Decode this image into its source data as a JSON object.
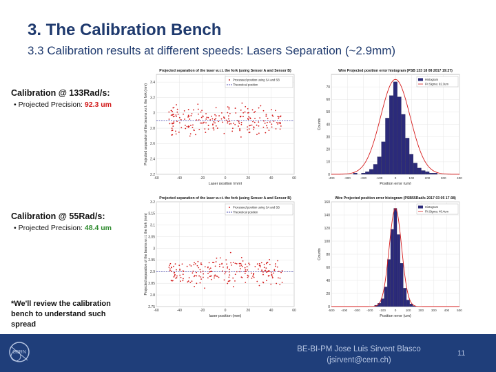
{
  "header": {
    "title": "3. The Calibration Bench",
    "subtitle": "3.3 Calibration results at different speeds: Lasers Separation (~2.9mm)"
  },
  "sections": [
    {
      "heading": "Calibration @ 133Rad/s:",
      "bullet_prefix": "• Projected Precision: ",
      "precision": "92.3 um",
      "precision_color": "#d11818"
    },
    {
      "heading": "Calibration @ 55Rad/s:",
      "bullet_prefix": "• Projected Precision: ",
      "precision": "48.4 um",
      "precision_color": "#2e8b2e"
    }
  ],
  "note": "*We'll review the calibration bench to understand such spread",
  "footer": {
    "credit_line1": "BE-BI-PM Jose Luis Sirvent Blasco",
    "credit_line2": "(jsirvent@cern.ch)",
    "page_number": "11",
    "logo_text": "CERN"
  },
  "chart_data": [
    {
      "type": "scatter",
      "title": "Projected separation of the laser w.r.t. the fork (using Sensor A and Sensor B)",
      "xlabel": "Laser position (mm)",
      "ylabel": "Projected separation of the beams w.r.t. the fork (mm)",
      "xlim": [
        -60,
        60
      ],
      "ylim": [
        2.2,
        3.5
      ],
      "xticks": [
        "-60",
        "-40",
        "-20",
        "0",
        "20",
        "40",
        "60"
      ],
      "yticks": [
        "2.2",
        "2.4",
        "2.6",
        "2.8",
        "3",
        "3.2",
        "3.4"
      ],
      "legend": [
        "Processed position using SA and SB",
        "Theoretical position"
      ],
      "reference_y": 2.9,
      "center": 2.9,
      "spread": 0.13,
      "count": 220
    },
    {
      "type": "bar",
      "title": "Wire Projected position error histogram (PSB 133 18 08 2017 19:27)",
      "xlabel": "Position error (um)",
      "ylabel": "Counts",
      "xlim": [
        -400,
        400
      ],
      "ylim": [
        0,
        80
      ],
      "xticks": [
        "-400",
        "-300",
        "-200",
        "-100",
        "0",
        "100",
        "200",
        "300",
        "400"
      ],
      "yticks": [
        "0",
        "10",
        "20",
        "30",
        "40",
        "50",
        "60",
        "70"
      ],
      "legend": [
        "Histogram",
        "Fit Sigma: 92.3um"
      ],
      "bin_centers": [
        -250,
        -225,
        -200,
        -175,
        -150,
        -125,
        -100,
        -75,
        -50,
        -25,
        0,
        25,
        50,
        75,
        100,
        125,
        150,
        175,
        200,
        225,
        250
      ],
      "values": [
        1,
        0,
        1,
        2,
        4,
        8,
        14,
        26,
        45,
        63,
        74,
        62,
        48,
        29,
        16,
        9,
        5,
        3,
        2,
        1,
        1
      ],
      "fit_sigma": 92.3,
      "fit_peak": 76
    },
    {
      "type": "scatter",
      "title": "Projected separation of the laser w.r.t. the fork (using Sensor A and Sensor B)",
      "xlabel": "laser position (mm)",
      "ylabel": "Projected separation of the beams w.r.t. the fork (mm)",
      "xlim": [
        -60,
        60
      ],
      "ylim": [
        2.75,
        3.2
      ],
      "xticks": [
        "-60",
        "-40",
        "-20",
        "0",
        "20",
        "40",
        "60"
      ],
      "yticks": [
        "2.75",
        "2.8",
        "2.85",
        "2.9",
        "2.95",
        "3",
        "3.05",
        "3.1",
        "3.15",
        "3.2"
      ],
      "legend": [
        "Processed position using SA and SB",
        "Theoretical position"
      ],
      "reference_y": 2.9,
      "center": 2.9,
      "spread": 0.045,
      "count": 220
    },
    {
      "type": "bar",
      "title": "Wire Projected position error histogram (PSB55Rad/s 2017 03 05 17:38)",
      "xlabel": "Position error (um)",
      "ylabel": "Counts",
      "xlim": [
        -500,
        500
      ],
      "ylim": [
        0,
        160
      ],
      "xticks": [
        "-500",
        "-400",
        "-300",
        "-200",
        "-100",
        "0",
        "100",
        "200",
        "300",
        "400",
        "500"
      ],
      "yticks": [
        "0",
        "20",
        "40",
        "60",
        "80",
        "100",
        "120",
        "140",
        "160"
      ],
      "legend": [
        "Histogram",
        "Fit Sigma: 48.4um"
      ],
      "bin_centers": [
        -150,
        -125,
        -100,
        -75,
        -50,
        -25,
        0,
        25,
        50,
        75,
        100,
        125,
        150
      ],
      "values": [
        2,
        5,
        12,
        30,
        72,
        118,
        150,
        110,
        66,
        28,
        10,
        4,
        1
      ],
      "fit_sigma": 48.4,
      "fit_peak": 150
    }
  ]
}
